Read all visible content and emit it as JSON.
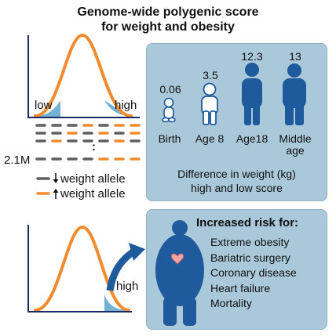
{
  "title": {
    "line1": "Genome-wide polygenic score",
    "line2": "for weight and obesity"
  },
  "distribution": {
    "low_label": "low",
    "high_label": "high",
    "bottom_high_label": "high"
  },
  "alleles": {
    "count_label": "2.1M",
    "ellipsis": ":",
    "decrease_label": "weight allele",
    "increase_label": "weight allele",
    "decrease_color": "#5f5f5f",
    "increase_color": "#f28a2e"
  },
  "weight_diff": {
    "groups": [
      {
        "value": "0.06",
        "label": "Birth"
      },
      {
        "value": "3.5",
        "label": "Age 8"
      },
      {
        "value": "12.3",
        "label": "Age18"
      },
      {
        "value": "13",
        "label": "Middle age"
      }
    ],
    "caption_line1": "Difference in weight (kg)",
    "caption_line2": "high and low score"
  },
  "risk": {
    "heading": "Increased risk for:",
    "items": [
      "Extreme obesity",
      "Bariatric surgery",
      "Coronary disease",
      "Heart failure",
      "Mortality"
    ]
  },
  "colors": {
    "curve": "#f28a2e",
    "tail_fill": "#73b2d3",
    "figure": "#1f5a9c",
    "panel": "#a9c8da"
  }
}
